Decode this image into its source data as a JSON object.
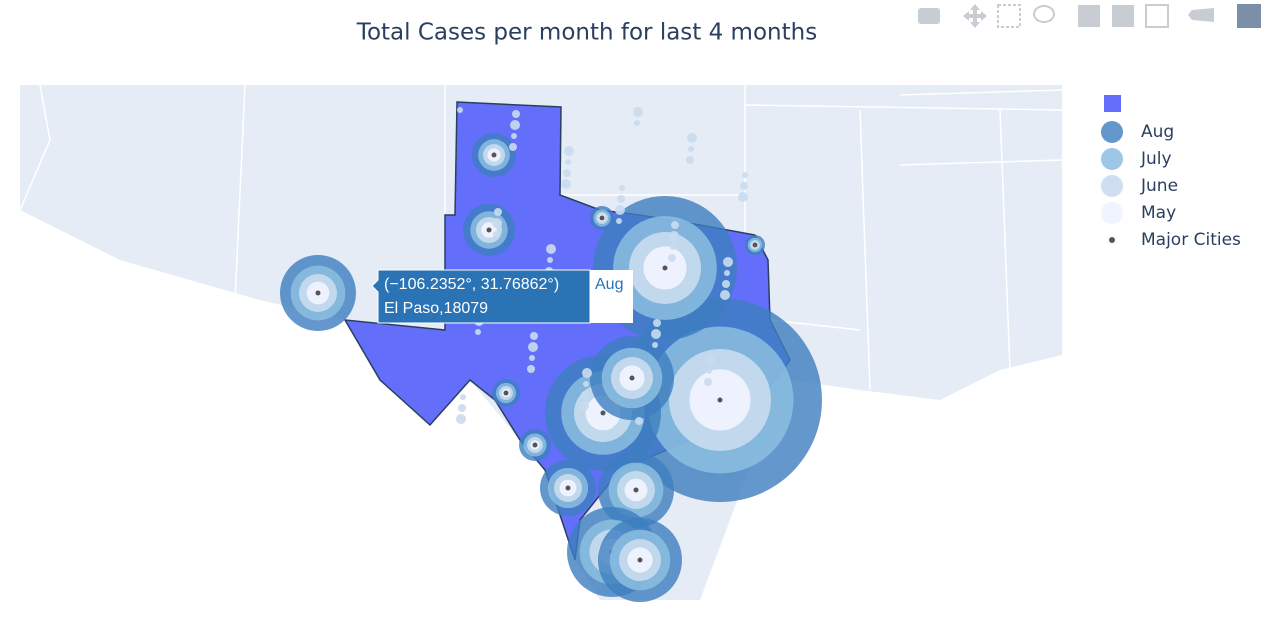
{
  "title": "Total Cases per month for last 4 months",
  "legend": {
    "items": [
      "Aug",
      "July",
      "June",
      "May",
      "Major Cities"
    ]
  },
  "tooltip": {
    "coords": "(−106.2352°, 31.76862°)",
    "text": "El Paso,18079",
    "series": "Aug"
  }
}
